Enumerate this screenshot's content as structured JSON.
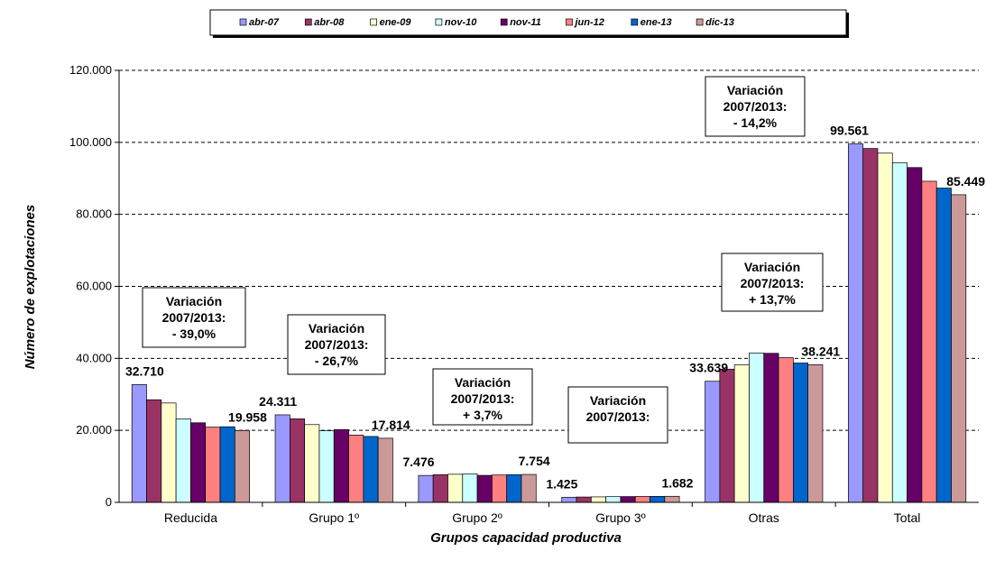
{
  "chart_data": {
    "type": "bar",
    "xlabel": "Grupos capacidad productiva",
    "ylabel": "Número de explotaciones",
    "ylim": [
      0,
      120000
    ],
    "yticks": [
      "0",
      "20.000",
      "40.000",
      "60.000",
      "80.000",
      "100.000",
      "120.000"
    ],
    "grid": "horizontal dashed",
    "legend_position": "top",
    "categories": [
      "Reducida",
      "Grupo 1º",
      "Grupo 2º",
      "Grupo 3º",
      "Otras",
      "Total"
    ],
    "series": [
      {
        "name": "abr-07",
        "color": "#9999ff",
        "values": [
          32710,
          24311,
          7476,
          1425,
          33639,
          99561
        ]
      },
      {
        "name": "abr-08",
        "color": "#993366",
        "values": [
          28500,
          23200,
          7700,
          1480,
          37000,
          98300
        ]
      },
      {
        "name": "ene-09",
        "color": "#ffffcc",
        "values": [
          27600,
          21600,
          7800,
          1520,
          38200,
          97000
        ]
      },
      {
        "name": "nov-10",
        "color": "#ccffff",
        "values": [
          23200,
          19900,
          7900,
          1580,
          41500,
          94300
        ]
      },
      {
        "name": "nov-11",
        "color": "#660066",
        "values": [
          22100,
          20200,
          7500,
          1600,
          41400,
          93000
        ]
      },
      {
        "name": "jun-12",
        "color": "#ff8080",
        "values": [
          20900,
          18700,
          7600,
          1640,
          40200,
          89200
        ]
      },
      {
        "name": "ene-13",
        "color": "#0066cc",
        "values": [
          21000,
          18300,
          7700,
          1660,
          38700,
          87300
        ]
      },
      {
        "name": "dic-13",
        "color": "#cc9999",
        "values": [
          19958,
          17814,
          7754,
          1682,
          38241,
          85449
        ]
      }
    ],
    "data_labels": [
      {
        "category": 0,
        "series": 0,
        "text": "32.710"
      },
      {
        "category": 0,
        "series": 7,
        "text": "19.958"
      },
      {
        "category": 1,
        "series": 0,
        "text": "24.311"
      },
      {
        "category": 1,
        "series": 7,
        "text": "17.814"
      },
      {
        "category": 2,
        "series": 0,
        "text": "7.476"
      },
      {
        "category": 2,
        "series": 7,
        "text": "7.754"
      },
      {
        "category": 3,
        "series": 0,
        "text": "1.425"
      },
      {
        "category": 3,
        "series": 7,
        "text": "1.682"
      },
      {
        "category": 4,
        "series": 0,
        "text": "33.639"
      },
      {
        "category": 4,
        "series": 7,
        "text": "38.241"
      },
      {
        "category": 5,
        "series": 0,
        "text": "99.561"
      },
      {
        "category": 5,
        "series": 7,
        "text": "85.449"
      }
    ],
    "annotations": [
      {
        "lines": [
          "Variación",
          "2007/2013:",
          "- 39,0%"
        ]
      },
      {
        "lines": [
          "Variación",
          "2007/2013:",
          "- 26,7%"
        ]
      },
      {
        "lines": [
          "Variación",
          "2007/2013:",
          "+ 3,7%"
        ]
      },
      {
        "lines": [
          "Variación",
          "2007/2013:"
        ]
      },
      {
        "lines": [
          "Variación",
          "2007/2013:",
          "+ 13,7%"
        ]
      },
      {
        "lines": [
          "Variación",
          "2007/2013:",
          "- 14,2%"
        ]
      }
    ]
  }
}
